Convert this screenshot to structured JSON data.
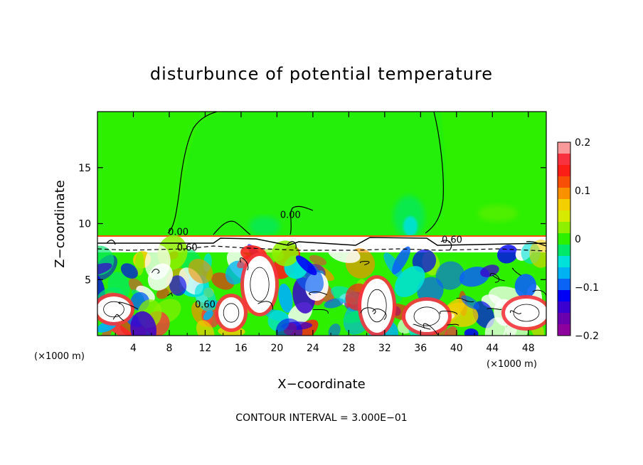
{
  "chart_data": {
    "type": "heatmap",
    "title": "disturbunce of potential temperature",
    "xlabel": "X−coordinate",
    "ylabel": "Z−coordinate",
    "x_unit": "(×1000 m)",
    "z_unit": "(×1000 m)",
    "xlim": [
      0,
      50
    ],
    "ylim": [
      0,
      20
    ],
    "x_ticks": [
      4,
      8,
      12,
      16,
      20,
      24,
      28,
      32,
      36,
      40,
      44,
      48
    ],
    "y_ticks": [
      5,
      10,
      15
    ],
    "contour_interval_text": "CONTOUR INTERVAL = 3.000E−01",
    "contour_labels": [
      {
        "text": "0.00",
        "x": 9.0,
        "z": 9.0
      },
      {
        "text": "0.00",
        "x": 21.5,
        "z": 10.5
      },
      {
        "text": "0.60",
        "x": 10.0,
        "z": 7.6
      },
      {
        "text": "0.60",
        "x": 39.5,
        "z": 8.3
      },
      {
        "text": "0.60",
        "x": 12.0,
        "z": 2.5
      }
    ],
    "colorbar": {
      "range": [
        -0.2,
        0.2
      ],
      "tick_values": [
        0.2,
        0.1,
        0,
        -0.1,
        -0.2
      ],
      "tick_labels": [
        "0.2",
        "0.1",
        "0",
        "−0.1",
        "−0.2"
      ],
      "colors": [
        "#f99999",
        "#f8333f",
        "#fb1e17",
        "#f84f06",
        "#f99000",
        "#f3ce00",
        "#d6ea00",
        "#8fef00",
        "#2cf000",
        "#00e86a",
        "#00e1da",
        "#00b2f2",
        "#0a63f4",
        "#0000f6",
        "#3a00cf",
        "#6a00ad",
        "#8d009d"
      ]
    },
    "regions": {
      "upper_layer": {
        "z_range": [
          9,
          20
        ],
        "value": 0.02
      },
      "interface_band": {
        "z_range": [
          7.5,
          9
        ],
        "value": "white"
      },
      "lower_layer": {
        "z_range": [
          0,
          7.5
        ],
        "value": "mixed"
      }
    }
  }
}
